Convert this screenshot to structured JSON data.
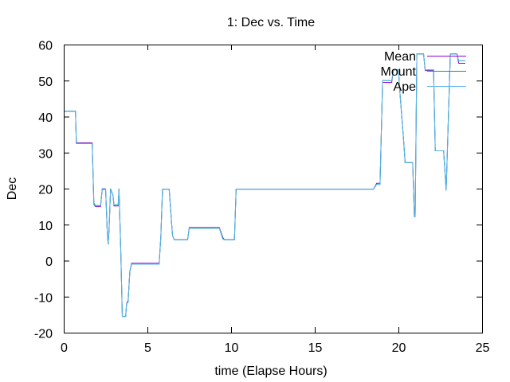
{
  "chart_data": {
    "type": "line",
    "title": "1: Dec vs. Time",
    "xlabel": "time (Elapse Hours)",
    "ylabel": "Dec",
    "xlim": [
      0,
      25
    ],
    "ylim": [
      -20,
      60
    ],
    "xticks": [
      0,
      5,
      10,
      15,
      20,
      25
    ],
    "yticks": [
      -20,
      -10,
      0,
      10,
      20,
      30,
      40,
      50,
      60
    ],
    "legend_position": "top-right",
    "grid": false,
    "series": [
      {
        "name": "Mean",
        "color": "#9400d3",
        "points": [
          [
            0,
            41.5
          ],
          [
            0.7,
            41.5
          ],
          [
            0.75,
            32.7
          ],
          [
            1.7,
            32.7
          ],
          [
            1.8,
            15.5
          ],
          [
            1.9,
            15
          ],
          [
            2.2,
            15
          ],
          [
            2.3,
            19.8
          ],
          [
            2.5,
            19.8
          ],
          [
            2.6,
            8
          ],
          [
            2.65,
            4.5
          ],
          [
            2.7,
            8
          ],
          [
            2.8,
            20
          ],
          [
            2.95,
            18
          ],
          [
            3.0,
            15.2
          ],
          [
            3.25,
            15.2
          ],
          [
            3.3,
            20
          ],
          [
            3.4,
            4
          ],
          [
            3.5,
            -15.5
          ],
          [
            3.7,
            -15.5
          ],
          [
            3.75,
            -12
          ],
          [
            3.85,
            -11
          ],
          [
            3.95,
            -3
          ],
          [
            4.05,
            -0.7
          ],
          [
            5.7,
            -0.7
          ],
          [
            5.8,
            6.5
          ],
          [
            5.9,
            19.8
          ],
          [
            6.3,
            19.8
          ],
          [
            6.5,
            7
          ],
          [
            6.6,
            5.8
          ],
          [
            7.4,
            5.8
          ],
          [
            7.5,
            9.2
          ],
          [
            9.3,
            9.2
          ],
          [
            9.5,
            6.5
          ],
          [
            9.6,
            5.8
          ],
          [
            10.2,
            5.8
          ],
          [
            10.3,
            19.8
          ],
          [
            12.7,
            19.8
          ],
          [
            15.7,
            19.8
          ],
          [
            18.5,
            19.8
          ],
          [
            18.7,
            21.5
          ],
          [
            18.9,
            21.5
          ],
          [
            19.05,
            49.5
          ],
          [
            19.6,
            49.5
          ],
          [
            19.7,
            53
          ],
          [
            20.0,
            53
          ],
          [
            20.1,
            46
          ],
          [
            20.3,
            34
          ],
          [
            20.4,
            27.2
          ],
          [
            20.85,
            27.2
          ],
          [
            20.95,
            12.2
          ],
          [
            21.0,
            12.2
          ],
          [
            21.1,
            57.4
          ],
          [
            21.5,
            57.4
          ],
          [
            21.6,
            52.8
          ],
          [
            22.1,
            52.8
          ],
          [
            22.2,
            30.5
          ],
          [
            22.7,
            30.5
          ],
          [
            22.85,
            19.5
          ],
          [
            23.1,
            57.4
          ],
          [
            23.5,
            57.4
          ],
          [
            23.6,
            54.8
          ],
          [
            24,
            54.8
          ]
        ]
      },
      {
        "name": "Mount",
        "color": "#009e73",
        "points": [
          [
            0,
            41.5
          ],
          [
            0.7,
            41.5
          ],
          [
            0.75,
            32.5
          ],
          [
            1.7,
            32.5
          ],
          [
            1.75,
            24
          ],
          [
            1.8,
            16
          ],
          [
            1.9,
            15.3
          ],
          [
            2.2,
            15.3
          ],
          [
            2.3,
            20
          ],
          [
            2.5,
            20
          ],
          [
            2.6,
            8
          ],
          [
            2.65,
            4.5
          ],
          [
            2.7,
            8
          ],
          [
            2.8,
            20
          ],
          [
            2.95,
            18
          ],
          [
            3.0,
            15.5
          ],
          [
            3.25,
            15.5
          ],
          [
            3.3,
            20
          ],
          [
            3.4,
            4
          ],
          [
            3.5,
            -15.5
          ],
          [
            3.7,
            -15.5
          ],
          [
            3.75,
            -12
          ],
          [
            3.85,
            -11.5
          ],
          [
            3.95,
            -3
          ],
          [
            4.05,
            -1
          ],
          [
            5.7,
            -1
          ],
          [
            5.8,
            6.5
          ],
          [
            5.9,
            19.8
          ],
          [
            6.3,
            19.8
          ],
          [
            6.5,
            7
          ],
          [
            6.6,
            5.8
          ],
          [
            7.4,
            5.8
          ],
          [
            7.5,
            9
          ],
          [
            9.3,
            9
          ],
          [
            9.5,
            6.2
          ],
          [
            9.6,
            5.8
          ],
          [
            10.2,
            5.8
          ],
          [
            10.3,
            19.8
          ],
          [
            18.5,
            19.8
          ],
          [
            18.7,
            21.2
          ],
          [
            18.9,
            21.2
          ],
          [
            19.05,
            50
          ],
          [
            19.6,
            50
          ],
          [
            19.7,
            53
          ],
          [
            20.0,
            53
          ],
          [
            20.1,
            46
          ],
          [
            20.3,
            34
          ],
          [
            20.4,
            27.2
          ],
          [
            20.85,
            27.2
          ],
          [
            20.95,
            12.2
          ],
          [
            21.0,
            12.2
          ],
          [
            21.1,
            57.4
          ],
          [
            21.5,
            57.4
          ],
          [
            21.6,
            53
          ],
          [
            22.1,
            53
          ],
          [
            22.2,
            30.5
          ],
          [
            22.7,
            30.5
          ],
          [
            22.85,
            19.5
          ],
          [
            23.1,
            57.4
          ],
          [
            23.5,
            57.4
          ],
          [
            23.6,
            55.5
          ],
          [
            24,
            55.5
          ]
        ]
      },
      {
        "name": "Ape",
        "color": "#56b4e9",
        "points": [
          [
            0,
            41.5
          ],
          [
            0.7,
            41.5
          ],
          [
            0.75,
            32.5
          ],
          [
            1.7,
            32.5
          ],
          [
            1.8,
            15.5
          ],
          [
            1.9,
            15.2
          ],
          [
            2.2,
            15.2
          ],
          [
            2.3,
            20
          ],
          [
            2.5,
            20
          ],
          [
            2.6,
            8
          ],
          [
            2.65,
            4.5
          ],
          [
            2.7,
            8
          ],
          [
            2.8,
            20
          ],
          [
            2.95,
            18
          ],
          [
            3.0,
            15.5
          ],
          [
            3.25,
            15.5
          ],
          [
            3.3,
            20
          ],
          [
            3.4,
            4
          ],
          [
            3.5,
            -15.5
          ],
          [
            3.7,
            -15.5
          ],
          [
            3.75,
            -12
          ],
          [
            3.85,
            -11.5
          ],
          [
            3.95,
            -3
          ],
          [
            4.05,
            -1
          ],
          [
            5.7,
            -1
          ],
          [
            5.8,
            6.5
          ],
          [
            5.9,
            19.8
          ],
          [
            6.3,
            19.8
          ],
          [
            6.5,
            7
          ],
          [
            6.6,
            5.8
          ],
          [
            7.4,
            5.8
          ],
          [
            7.5,
            9
          ],
          [
            9.3,
            9
          ],
          [
            9.5,
            6
          ],
          [
            9.6,
            5.8
          ],
          [
            10.2,
            5.8
          ],
          [
            10.3,
            19.8
          ],
          [
            18.5,
            19.8
          ],
          [
            18.7,
            21.2
          ],
          [
            18.9,
            21.2
          ],
          [
            19.05,
            50
          ],
          [
            19.6,
            50
          ],
          [
            19.7,
            53
          ],
          [
            20.0,
            53
          ],
          [
            20.1,
            46
          ],
          [
            20.3,
            34
          ],
          [
            20.4,
            27.2
          ],
          [
            20.85,
            27.2
          ],
          [
            20.95,
            12.2
          ],
          [
            21.0,
            12.2
          ],
          [
            21.1,
            57.4
          ],
          [
            21.5,
            57.4
          ],
          [
            21.6,
            53
          ],
          [
            22.1,
            53
          ],
          [
            22.2,
            30.5
          ],
          [
            22.7,
            30.5
          ],
          [
            22.85,
            19.5
          ],
          [
            23.1,
            57.4
          ],
          [
            23.5,
            57.4
          ],
          [
            23.6,
            55.5
          ],
          [
            24,
            55.5
          ]
        ]
      }
    ]
  }
}
